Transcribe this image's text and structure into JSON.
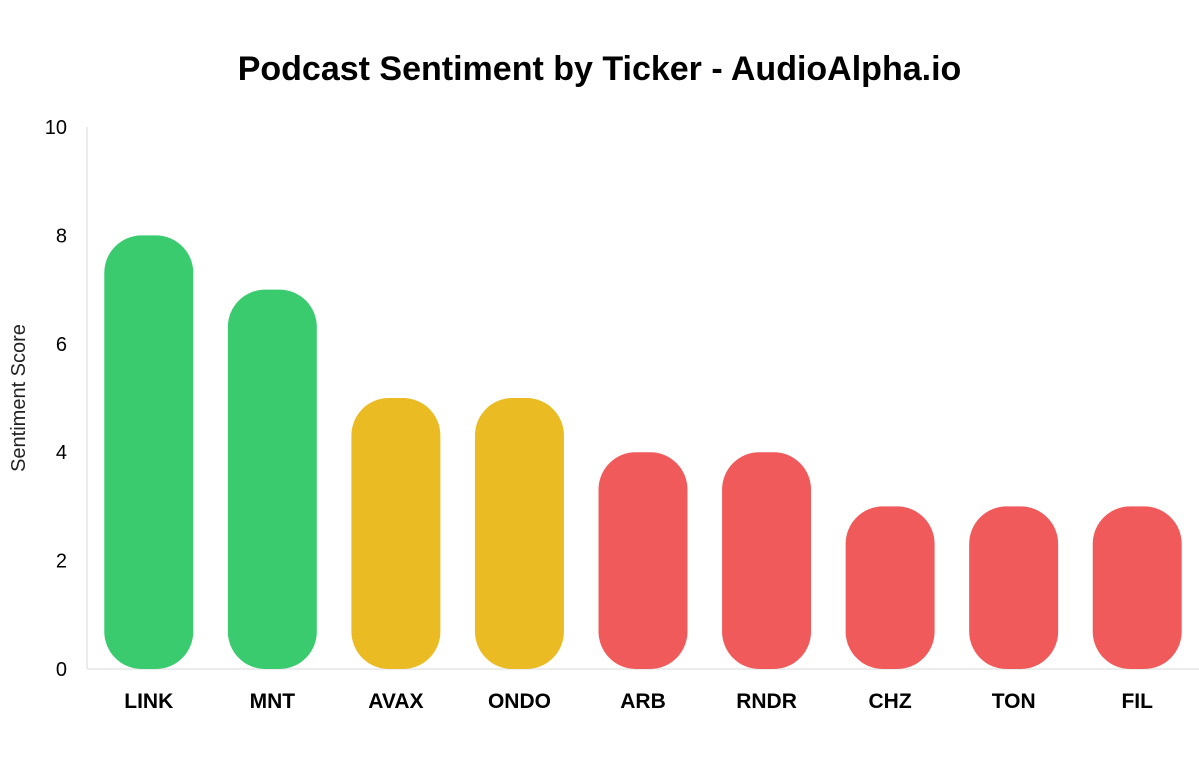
{
  "chart_data": {
    "type": "bar",
    "title": "Podcast Sentiment by Ticker - AudioAlpha.io",
    "xlabel": "",
    "ylabel": "Sentiment Score",
    "ylim": [
      0,
      10
    ],
    "yticks": [
      "0",
      "2",
      "4",
      "6",
      "8",
      "10"
    ],
    "categories": [
      "LINK",
      "MNT",
      "AVAX",
      "ONDO",
      "ARB",
      "RNDR",
      "CHZ",
      "TON",
      "FIL"
    ],
    "values": [
      8,
      7,
      5,
      5,
      4,
      4,
      3,
      3,
      3
    ],
    "colors": [
      "#3acb6f",
      "#3acb6f",
      "#ebbb24",
      "#ebbb24",
      "#f05a5a",
      "#f05a5a",
      "#f05a5a",
      "#f05a5a",
      "#f05a5a"
    ],
    "grid": false,
    "legend": "none"
  }
}
